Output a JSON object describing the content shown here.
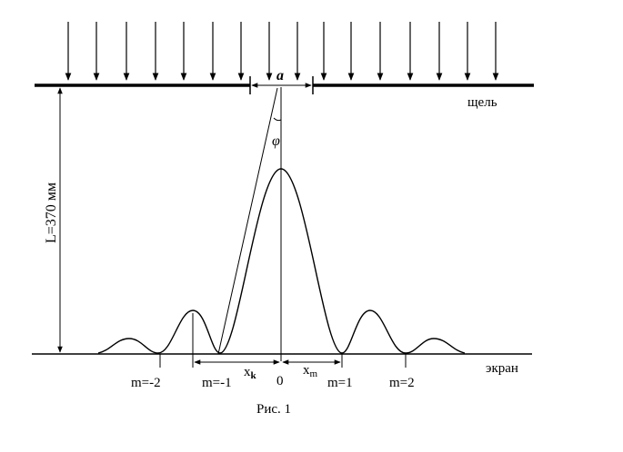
{
  "diagram": {
    "slit_width_label": "a",
    "slit_label": "щель",
    "distance_label": "L=370 мм",
    "angle_label": "φ",
    "screen_label": "экран",
    "center_label": "0",
    "xk_label": "x",
    "xk_sub": "k",
    "xm_label": "x",
    "xm_sub": "m",
    "order_labels": [
      "m=-2",
      "m=-1",
      "m=1",
      "m=2"
    ],
    "caption": "Рис. 1",
    "line_color": "#000000"
  }
}
